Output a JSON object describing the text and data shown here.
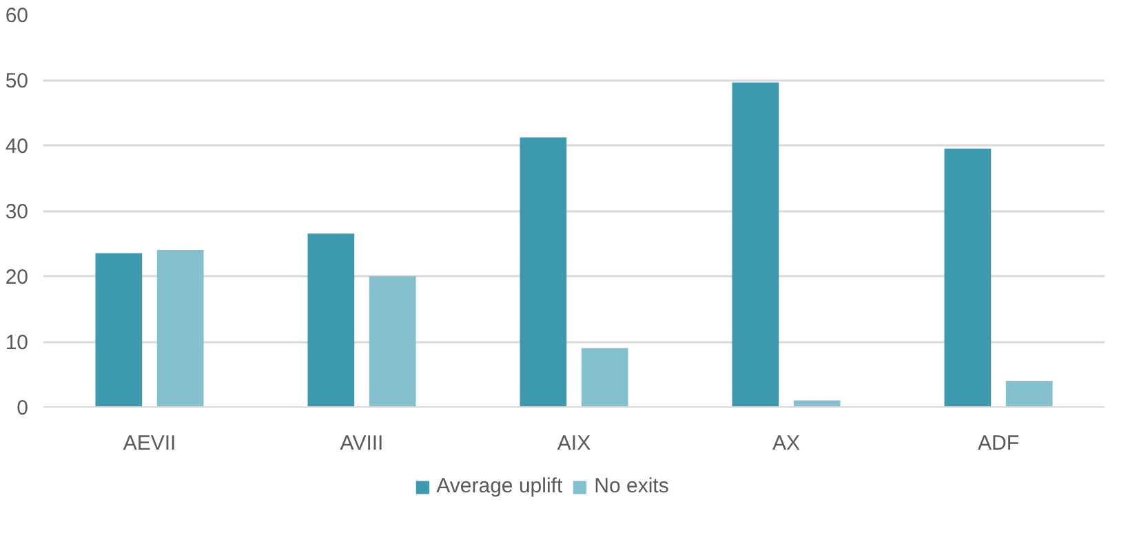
{
  "chart_data": {
    "type": "bar",
    "categories": [
      "AEVII",
      "AVIII",
      "AIX",
      "AX",
      "ADF"
    ],
    "series": [
      {
        "name": "Average uplift",
        "color": "#3d9aae",
        "values": [
          23.5,
          26.5,
          41.2,
          49.6,
          39.5
        ]
      },
      {
        "name": "No exits",
        "color": "#85c0cf",
        "values": [
          24,
          20,
          9,
          1,
          4
        ]
      }
    ],
    "ylim": [
      0,
      60
    ],
    "yticks": [
      0,
      10,
      20,
      30,
      40,
      50,
      60
    ],
    "grid": "y",
    "legend": "bottom"
  }
}
